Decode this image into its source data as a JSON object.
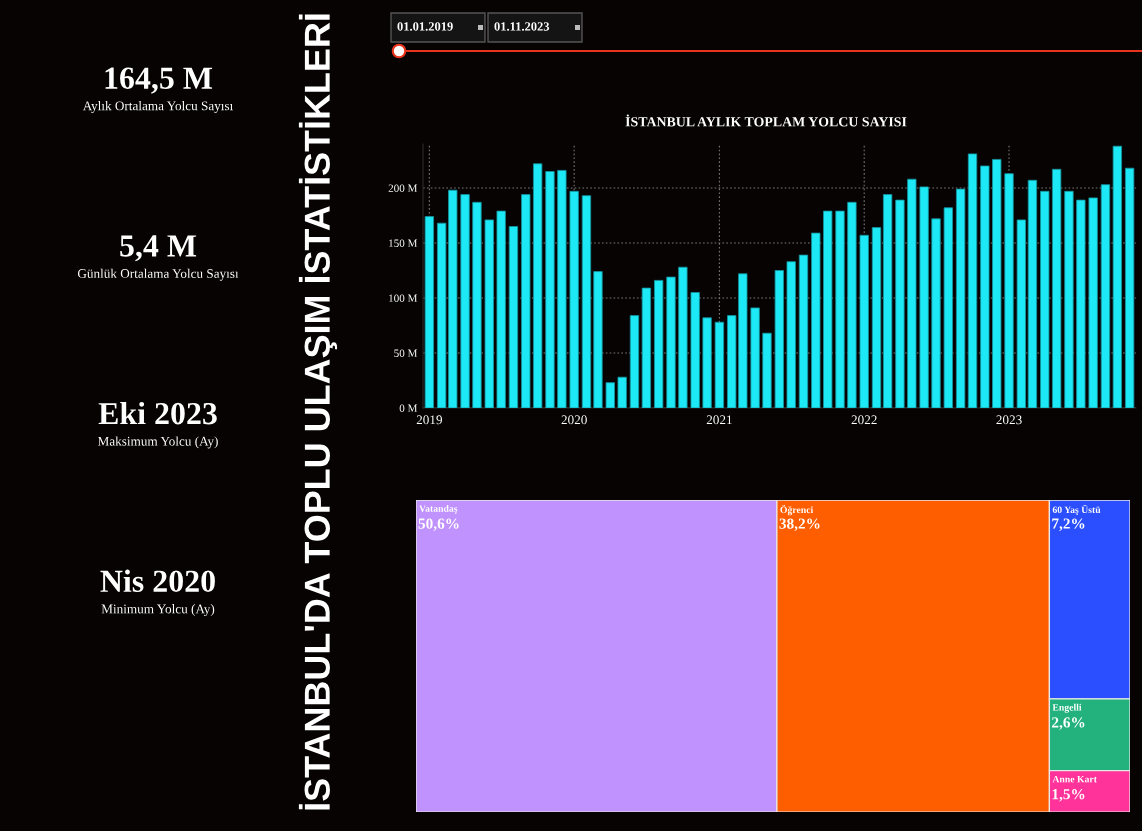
{
  "chart_data": [
    {
      "type": "other",
      "title": "İSTANBUL'DA TOPLU ULAŞIM İSTATİSTİKLERİ",
      "annotations": [
        "164,5 M",
        "Aylık Ortalama Yolcu Sayısı",
        "5,4 M",
        "Günlük Ortalama Yolcu Sayısı",
        "Eki 2023",
        "Maksimum Yolcu (Ay)",
        "Nis 2020",
        "Minimum Yolcu (Ay)"
      ]
    },
    {
      "type": "other",
      "annotations": [
        "01.01.2019",
        "01.11.2023"
      ]
    },
    {
      "type": "bar",
      "title": "İSTANBUL AYLIK TOPLAM YOLCU SAYISI",
      "color": "#1de9f6",
      "x": [
        "2019-01",
        "2019-02",
        "2019-03",
        "2019-04",
        "2019-05",
        "2019-06",
        "2019-07",
        "2019-08",
        "2019-09",
        "2019-10",
        "2019-11",
        "2019-12",
        "2020-01",
        "2020-02",
        "2020-03",
        "2020-04",
        "2020-05",
        "2020-06",
        "2020-07",
        "2020-08",
        "2020-09",
        "2020-10",
        "2020-11",
        "2020-12",
        "2021-01",
        "2021-02",
        "2021-03",
        "2021-04",
        "2021-05",
        "2021-06",
        "2021-07",
        "2021-08",
        "2021-09",
        "2021-10",
        "2021-11",
        "2021-12",
        "2022-01",
        "2022-02",
        "2022-03",
        "2022-04",
        "2022-05",
        "2022-06",
        "2022-07",
        "2022-08",
        "2022-09",
        "2022-10",
        "2022-11",
        "2022-12",
        "2023-01",
        "2023-02",
        "2023-03",
        "2023-04",
        "2023-05",
        "2023-06",
        "2023-07",
        "2023-08",
        "2023-09",
        "2023-10",
        "2023-11"
      ],
      "values": [
        174,
        168,
        198,
        194,
        187,
        171,
        179,
        165,
        194,
        222,
        215,
        216,
        197,
        193,
        124,
        23,
        28,
        84,
        109,
        116,
        119,
        128,
        105,
        82,
        78,
        84,
        122,
        91,
        68,
        125,
        133,
        139,
        159,
        179,
        179,
        187,
        157,
        164,
        194,
        189,
        208,
        201,
        172,
        182,
        199,
        231,
        220,
        226,
        213,
        171,
        207,
        197,
        217,
        197,
        189,
        191,
        203,
        238,
        218
      ],
      "xlim": [
        "2018-12-16",
        "2023-11-17"
      ],
      "xticks": [
        "2019",
        "2020",
        "2021",
        "2022",
        "2023"
      ],
      "ylim": [
        0,
        240
      ],
      "yticks": [
        {
          "value": 0,
          "label": "0 M"
        },
        {
          "value": 50,
          "label": "50 M"
        },
        {
          "value": 100,
          "label": "100 M"
        },
        {
          "value": 150,
          "label": "150 M"
        },
        {
          "value": 200,
          "label": "200 M"
        }
      ],
      "grid": true
    },
    {
      "type": "other",
      "categories": [
        "Vatandaş",
        "Öğrenci",
        "60 Yaş Üstü",
        "Engelli",
        "Anne Kart"
      ],
      "values": [
        50.6,
        38.2,
        7.2,
        2.6,
        1.5
      ],
      "value_labels": [
        "50,6%",
        "38,2%",
        "7,2%",
        "2,6%",
        "1,5%"
      ],
      "colors": [
        "#c092fd",
        "#ff5e00",
        "#2b4ffe",
        "#23b27e",
        "#ff3399"
      ]
    }
  ]
}
